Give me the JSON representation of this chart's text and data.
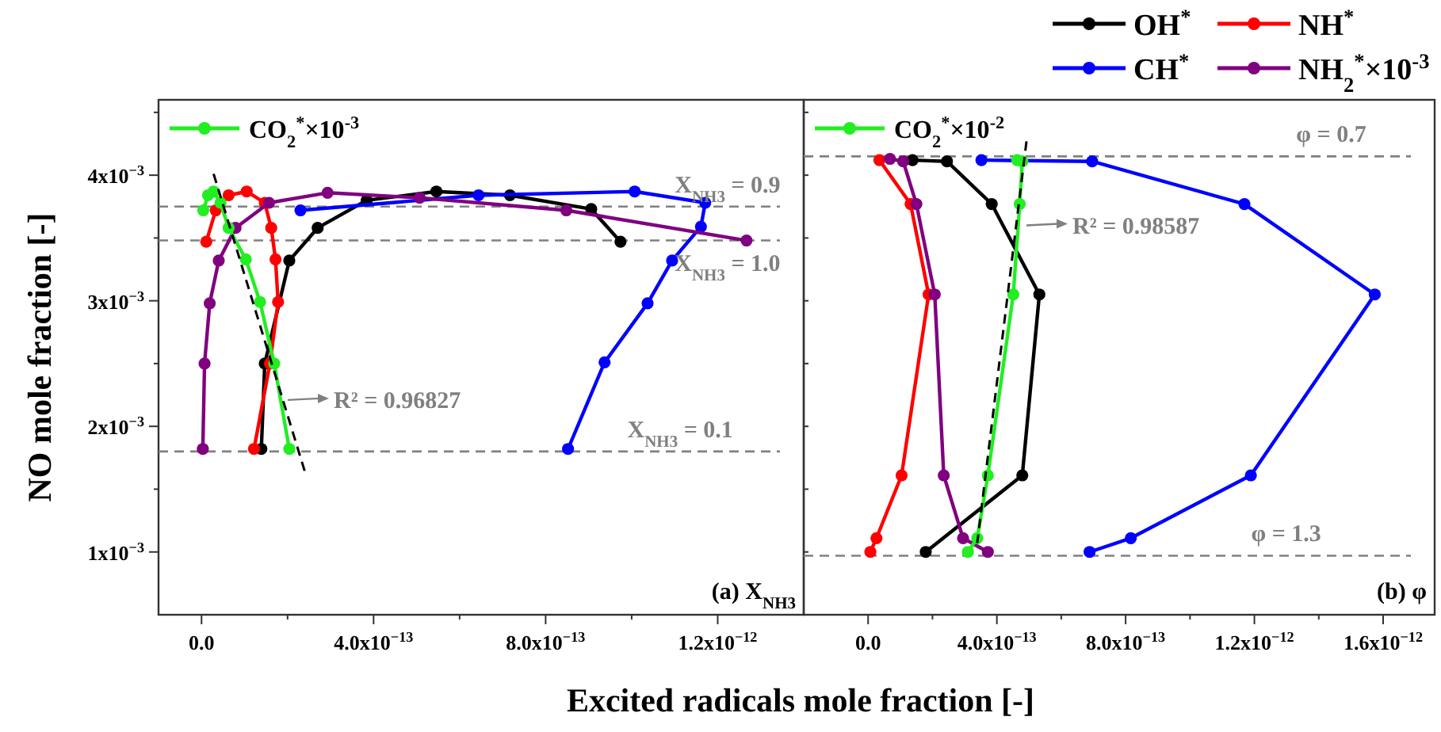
{
  "chart_data": [
    {
      "type": "line",
      "xlabel": "Excited radicals mole fraction [-]",
      "ylabel": "NO mole fraction [-]",
      "xlim": [
        -1e-13,
        1.4e-12
      ],
      "xticks": [
        {
          "value": 0,
          "label": "0.0"
        },
        {
          "value": 2e-13,
          "label": null
        },
        {
          "value": 4e-13,
          "label": "4.0x10$^{−13}$"
        },
        {
          "value": 6e-13,
          "label": null
        },
        {
          "value": 8e-13,
          "label": "8.0x10$^{−13}$"
        },
        {
          "value": 1e-12,
          "label": null
        },
        {
          "value": 1.2e-12,
          "label": "1.2x10$^{−12}$"
        }
      ],
      "ylim": [
        0.0005,
        0.0046
      ],
      "yticks": [
        {
          "value": 0.001,
          "label": "1x10$^{−3}$"
        },
        {
          "value": 0.0015,
          "label": null
        },
        {
          "value": 0.002,
          "label": "2x10$^{−3}$"
        },
        {
          "value": 0.0025,
          "label": null
        },
        {
          "value": 0.003,
          "label": "3x10$^{−3}$"
        },
        {
          "value": 0.0035,
          "label": null
        },
        {
          "value": 0.004,
          "label": "4x10$^{−3}$"
        },
        {
          "value": 0.0045,
          "label": null
        }
      ],
      "marker": "circle",
      "legend": "top left",
      "grid": false,
      "series": [
        {
          "color": "#000000",
          "x": [
            1.39e-13,
            1.47e-13,
            2.04e-13,
            2.7e-13,
            3.84e-13,
            5.46e-13,
            7.17e-13,
            9.06e-13,
            9.74e-13
          ],
          "values": [
            0.00182,
            0.0025,
            0.00332,
            0.00358,
            0.0038,
            0.00387,
            0.00384,
            0.00373,
            0.00347
          ]
        },
        {
          "color": "#ff0000",
          "x": [
            1.22e-13,
            1.59e-13,
            1.78e-13,
            1.72e-13,
            1.62e-13,
            1.47e-13,
            1.05e-13,
            6.3e-14,
            3.3e-14,
            1.1e-14
          ],
          "values": [
            0.00182,
            0.0025,
            0.00299,
            0.00333,
            0.00358,
            0.00378,
            0.00387,
            0.00384,
            0.00372,
            0.00347
          ]
        },
        {
          "color": "#0000ff",
          "x": [
            8.52e-13,
            9.37e-13,
            1.037e-12,
            1.094e-12,
            1.161e-12,
            1.171e-12,
            1.007e-12,
            6.44e-13,
            2.3e-13
          ],
          "values": [
            0.00182,
            0.00251,
            0.00298,
            0.00332,
            0.00359,
            0.00378,
            0.00387,
            0.00384,
            0.00372
          ]
        },
        {
          "color": "#800080",
          "x": [
            3e-15,
            7e-15,
            1.9e-14,
            4e-14,
            7.9e-14,
            1.57e-13,
            2.93e-13,
            5.07e-13,
            8.48e-13,
            1.267e-12
          ],
          "values": [
            0.00182,
            0.0025,
            0.00298,
            0.00332,
            0.00358,
            0.00378,
            0.00386,
            0.00382,
            0.00372,
            0.00348
          ]
        },
        {
          "name": "CO$_{2}$$^{*}$×10$^{-3}$",
          "color": "#22ee22",
          "x": [
            2.04e-13,
            1.69e-13,
            1.36e-13,
            1.03e-13,
            6.3e-14,
            4.4e-14,
            2.8e-14,
            1.5e-14,
            4e-15
          ],
          "values": [
            0.00182,
            0.0025,
            0.00299,
            0.00333,
            0.00358,
            0.00378,
            0.00387,
            0.00384,
            0.00372
          ]
        },
        {
          "color": "#000000",
          "marker": "none",
          "line_style": "dashed",
          "x": [
            2.8e-14,
            2.42e-13
          ],
          "values": [
            0.00401,
            0.00162
          ]
        }
      ],
      "ref_lines": [
        {
          "axis": "y",
          "value": 0.00375,
          "color": "#808080",
          "line_style": "dashed"
        },
        {
          "axis": "y",
          "value": 0.00348,
          "color": "#808080",
          "line_style": "dashed"
        },
        {
          "axis": "y",
          "value": 0.0018,
          "color": "#808080",
          "line_style": "dashed"
        }
      ],
      "annotations": [
        {
          "text": "R² = 0.96827",
          "x": 1.93e-13,
          "y": 0.00221
        },
        {
          "text": "X$_{NH3}$ = 0.9",
          "x": 1.1e-12,
          "y": 0.00375
        },
        {
          "text": "X$_{NH3}$ = 1.0",
          "x": 1.1e-12,
          "y": 0.00348
        },
        {
          "text": "X$_{NH3}$ = 0.1",
          "x": 9.9e-13,
          "y": 0.0018
        },
        "(a) X$_{NH3}$"
      ]
    },
    {
      "type": "line",
      "xlim": [
        -2e-13,
        1.76e-12
      ],
      "xticks": [
        {
          "value": 0,
          "label": "0.0"
        },
        {
          "value": 2e-13,
          "label": null
        },
        {
          "value": 4e-13,
          "label": "4.0x10$^{−13}$"
        },
        {
          "value": 6e-13,
          "label": null
        },
        {
          "value": 8e-13,
          "label": "8.0x10$^{−13}$"
        },
        {
          "value": 1e-12,
          "label": null
        },
        {
          "value": 1.2e-12,
          "label": "1.2x10$^{−12}$"
        },
        {
          "value": 1.4e-12,
          "label": null
        },
        {
          "value": 1.6e-12,
          "label": "1.6x10$^{−12}$"
        }
      ],
      "ylim": [
        0.0005,
        0.0046
      ],
      "yticks": [
        {
          "value": 0.001,
          "label": null
        },
        {
          "value": 0.0015,
          "label": null
        },
        {
          "value": 0.002,
          "label": null
        },
        {
          "value": 0.0025,
          "label": null
        },
        {
          "value": 0.003,
          "label": null
        },
        {
          "value": 0.0035,
          "label": null
        },
        {
          "value": 0.004,
          "label": null
        },
        {
          "value": 0.0045,
          "label": null
        }
      ],
      "tick_labels": "x",
      "marker": "circle",
      "legend": "top",
      "grid": false,
      "series": [
        {
          "name": "OH$^{*}$",
          "color": "#000000",
          "x": [
            1.38e-13,
            2.45e-13,
            3.84e-13,
            5.32e-13,
            4.79e-13,
            1.79e-13
          ],
          "values": [
            0.00412,
            0.00411,
            0.00377,
            0.00305,
            0.00161,
            0.001
          ]
        },
        {
          "name": "NH$^{*}$",
          "color": "#ff0000",
          "x": [
            3.5e-14,
            1.32e-13,
            1.88e-13,
            1.04e-13,
            2.6e-14,
            7e-15
          ],
          "values": [
            0.00412,
            0.00377,
            0.00305,
            0.00161,
            0.00111,
            0.001
          ]
        },
        {
          "name": "CH$^{*}$",
          "color": "#0000ff",
          "x": [
            3.52e-13,
            6.96e-13,
            1.169e-12,
            1.574e-12,
            1.189e-12,
            8.16e-13,
            6.88e-13
          ],
          "values": [
            0.00412,
            0.00411,
            0.00377,
            0.00305,
            0.00161,
            0.00111,
            0.001
          ]
        },
        {
          "name": "NH$_{2}$$^{*}$×10$^{-3}$",
          "color": "#800080",
          "x": [
            6.8e-14,
            1.09e-13,
            1.5e-13,
            2.07e-13,
            2.35e-13,
            2.95e-13,
            3.72e-13
          ],
          "values": [
            0.00413,
            0.00411,
            0.00377,
            0.00305,
            0.00161,
            0.00111,
            0.001
          ]
        },
        {
          "name": "CO$_{2}$$^{*}$×10$^{-2}$",
          "color": "#22ee22",
          "x": [
            4.63e-13,
            4.79e-13,
            4.71e-13,
            4.51e-13,
            3.72e-13,
            3.39e-13,
            3.1e-13
          ],
          "values": [
            0.00412,
            0.00411,
            0.00377,
            0.00305,
            0.00161,
            0.00111,
            0.001
          ]
        },
        {
          "color": "#000000",
          "marker": "none",
          "line_style": "dashed",
          "x": [
            4.92e-13,
            3.39e-13
          ],
          "values": [
            0.00427,
            0.00107
          ]
        }
      ],
      "ref_lines": [
        {
          "axis": "y",
          "value": 0.00415,
          "color": "#808080",
          "line_style": "dashed"
        },
        {
          "axis": "y",
          "value": 0.00097,
          "color": "#808080",
          "line_style": "dashed"
        }
      ],
      "annotations": [
        {
          "text": "R² = 0.98587",
          "x": 4.82e-13,
          "y": 0.0036
        },
        {
          "text": "φ = 0.7",
          "x": 1.33e-12,
          "y": 0.00415
        },
        {
          "text": "φ = 1.3",
          "x": 1.19e-12,
          "y": 0.00097
        },
        "(b) φ"
      ]
    }
  ]
}
